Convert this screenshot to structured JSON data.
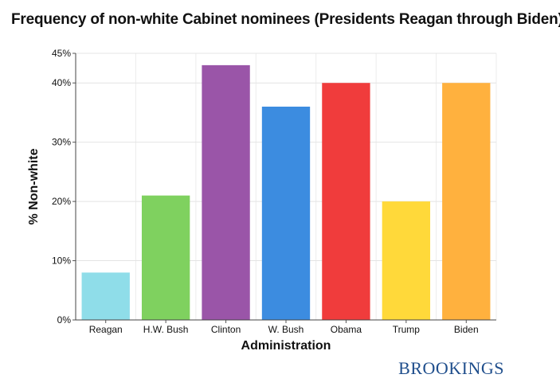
{
  "title": "Frequency of non-white Cabinet nominees (Presidents Reagan through Biden)",
  "brand": "BROOKINGS",
  "chart_data": {
    "type": "bar",
    "title": "Frequency of non-white Cabinet nominees (Presidents Reagan through Biden)",
    "xlabel": "Administration",
    "ylabel": "% Non-white",
    "categories": [
      "Reagan",
      "H.W. Bush",
      "Clinton",
      "W. Bush",
      "Obama",
      "Trump",
      "Biden"
    ],
    "values": [
      8,
      21,
      43,
      36,
      40,
      20,
      40
    ],
    "colors": [
      "#8fdde9",
      "#7fd15f",
      "#9a55a8",
      "#3c8ce0",
      "#f03c3c",
      "#ffd93a",
      "#ffb13e"
    ],
    "ylim": [
      0,
      45
    ],
    "yticks": [
      0,
      10,
      20,
      30,
      40,
      45
    ],
    "ytick_labels": [
      "0%",
      "10%",
      "20%",
      "30%",
      "40%",
      "45%"
    ],
    "grid": true
  }
}
